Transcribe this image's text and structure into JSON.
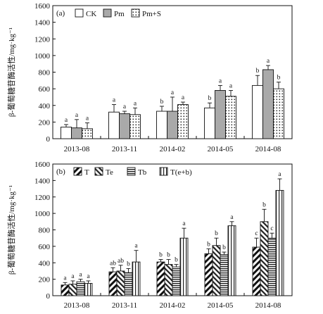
{
  "chart_data": [
    {
      "type": "bar",
      "panel_label": "(a)",
      "ylabel": "β-葡萄糖苷酶活性/mg·kg⁻¹",
      "ylim": [
        0,
        1600
      ],
      "yticks": [
        0,
        200,
        400,
        600,
        800,
        1000,
        1200,
        1400,
        1600
      ],
      "categories": [
        "2013-08",
        "2013-11",
        "2014-02",
        "2014-05",
        "2014-08"
      ],
      "legend_position": "top-left",
      "series": [
        {
          "name": "CK",
          "pattern": "white",
          "values": [
            140,
            320,
            330,
            370,
            640
          ],
          "errors": [
            30,
            90,
            60,
            60,
            120
          ],
          "letters": [
            "a",
            "a",
            "b",
            "b",
            "b"
          ]
        },
        {
          "name": "Pm",
          "pattern": "gray",
          "values": [
            130,
            300,
            330,
            580,
            830
          ],
          "errors": [
            100,
            30,
            170,
            60,
            50
          ],
          "letters": [
            "a",
            "a",
            "a",
            "a",
            "a"
          ]
        },
        {
          "name": "Pm+S",
          "pattern": "dots",
          "values": [
            120,
            290,
            410,
            510,
            600
          ],
          "errors": [
            70,
            80,
            30,
            70,
            80
          ],
          "letters": [
            "a",
            "a",
            "a",
            "a",
            "b"
          ]
        }
      ]
    },
    {
      "type": "bar",
      "panel_label": "(b)",
      "ylabel": "β-葡萄糖苷酶活性/mg·kg⁻¹",
      "ylim": [
        0,
        1600
      ],
      "yticks": [
        0,
        200,
        400,
        600,
        800,
        1000,
        1200,
        1400,
        1600
      ],
      "categories": [
        "2013-08",
        "2013-11",
        "2014-02",
        "2014-05",
        "2014-08"
      ],
      "legend_position": "top-left",
      "series": [
        {
          "name": "T",
          "pattern": "diag-thick",
          "values": [
            130,
            290,
            410,
            510,
            590
          ],
          "errors": [
            30,
            50,
            30,
            60,
            110
          ],
          "letters": [
            "a",
            "ab",
            "b",
            "b",
            "c"
          ]
        },
        {
          "name": "Te",
          "pattern": "diag-back",
          "values": [
            140,
            300,
            380,
            610,
            900
          ],
          "errors": [
            40,
            70,
            60,
            90,
            150
          ],
          "letters": [
            "a",
            "ab",
            "b",
            "b",
            "b"
          ]
        },
        {
          "name": "Tb",
          "pattern": "hlines",
          "values": [
            170,
            280,
            350,
            500,
            700
          ],
          "errors": [
            30,
            50,
            30,
            30,
            60
          ],
          "letters": [
            "a",
            "b",
            "b",
            "b",
            "c"
          ]
        },
        {
          "name": "T(e+b)",
          "pattern": "vlines",
          "values": [
            150,
            410,
            700,
            850,
            1280
          ],
          "errors": [
            30,
            140,
            120,
            50,
            140
          ],
          "letters": [
            "a",
            "a",
            "a",
            "a",
            "a"
          ]
        }
      ]
    }
  ]
}
